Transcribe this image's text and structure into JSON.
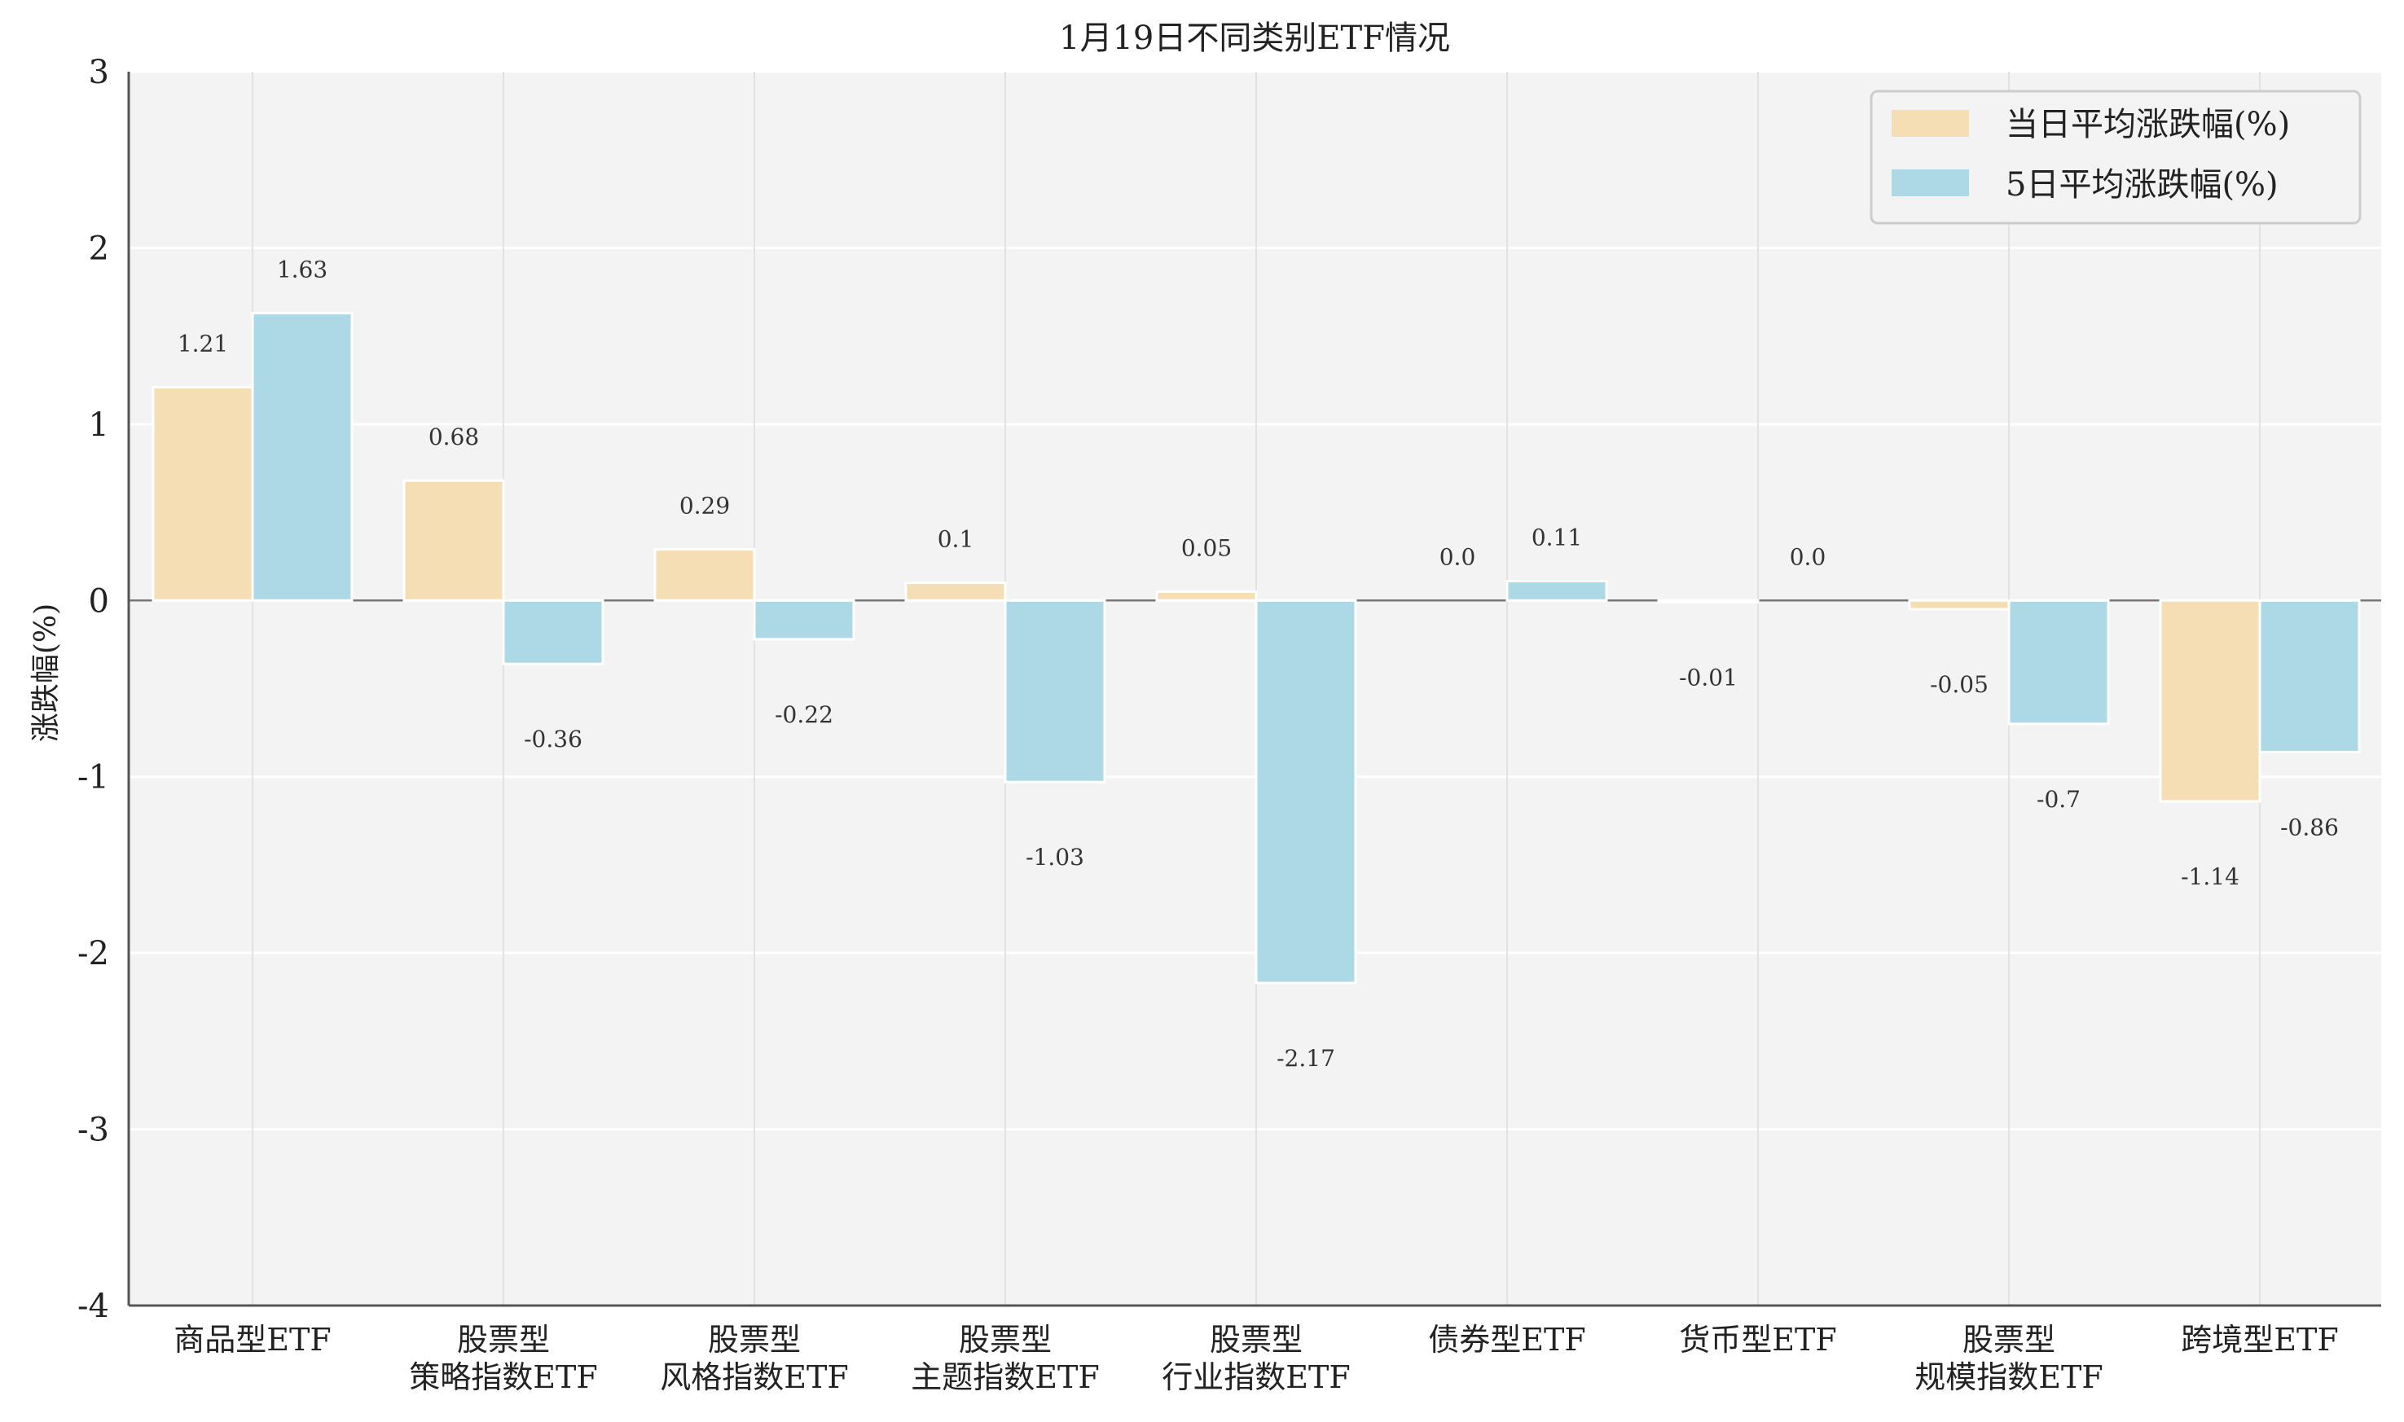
{
  "chart_data": {
    "type": "bar",
    "title": "1月19日不同类别ETF情况",
    "xlabel": "",
    "ylabel": "涨跌幅(%)",
    "ylim": [
      -4,
      3
    ],
    "yticks": [
      "3",
      "2",
      "1",
      "0",
      "-1",
      "-2",
      "-3",
      "-4"
    ],
    "ytick_values": [
      3,
      2,
      1,
      0,
      -1,
      -2,
      -3,
      -4
    ],
    "grid": true,
    "legend_position": "top-right",
    "categories": [
      [
        "商品型ETF"
      ],
      [
        "股票型",
        "策略指数ETF"
      ],
      [
        "股票型",
        "风格指数ETF"
      ],
      [
        "股票型",
        "主题指数ETF"
      ],
      [
        "股票型",
        "行业指数ETF"
      ],
      [
        "债券型ETF"
      ],
      [
        "货币型ETF"
      ],
      [
        "股票型",
        "规模指数ETF"
      ],
      [
        "跨境型ETF"
      ]
    ],
    "series": [
      {
        "name": "当日平均涨跌幅(%)",
        "color": "#F5DEB3",
        "values": [
          1.21,
          0.68,
          0.29,
          0.1,
          0.05,
          0.0,
          -0.01,
          -0.05,
          -1.14
        ],
        "labels": [
          "1.21",
          "0.68",
          "0.29",
          "0.1",
          "0.05",
          "0.0",
          "-0.01",
          "-0.05",
          "-1.14"
        ]
      },
      {
        "name": "5日平均涨跌幅(%)",
        "color": "#ADD8E6",
        "values": [
          1.63,
          -0.36,
          -0.22,
          -1.03,
          -2.17,
          0.11,
          0.0,
          -0.7,
          -0.86
        ],
        "labels": [
          "1.63",
          "-0.36",
          "-0.22",
          "-1.03",
          "-2.17",
          "0.11",
          "0.0",
          "-0.7",
          "-0.86"
        ]
      }
    ]
  }
}
